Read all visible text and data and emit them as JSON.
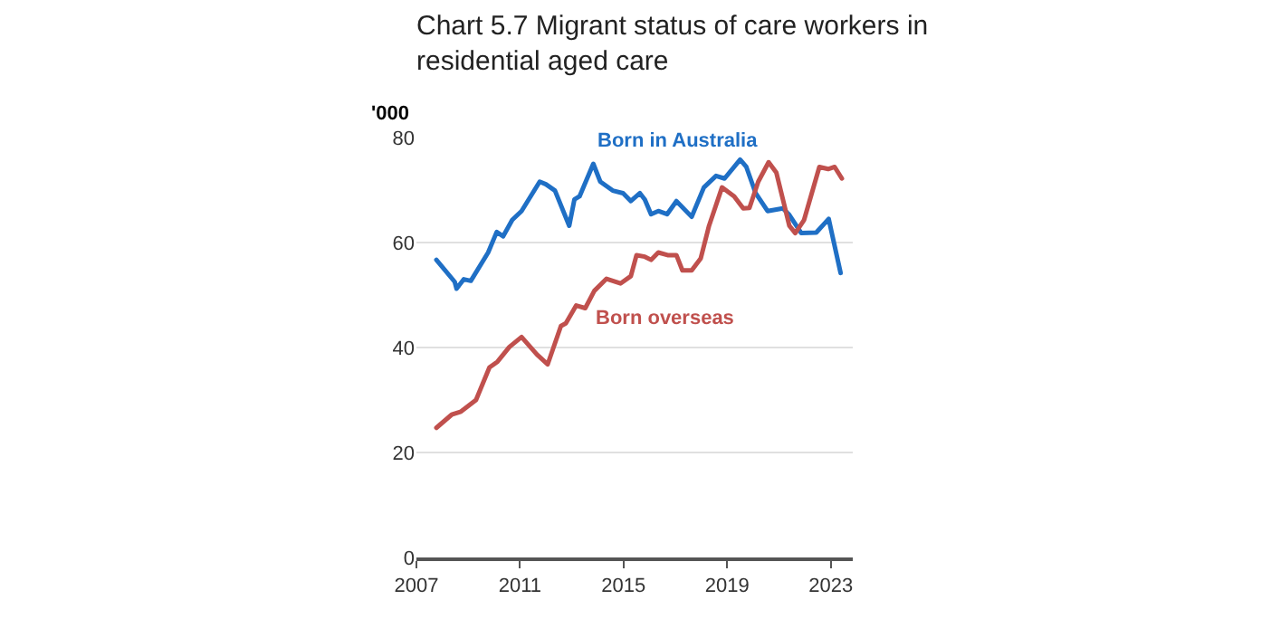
{
  "chart_data": {
    "type": "line",
    "title": "Chart 5.7 Migrant status of care workers in\nresidential aged care",
    "ylabel": "'000",
    "xlim": [
      2007,
      2023.85
    ],
    "xticks": [
      2007,
      2011,
      2015,
      2019,
      2023
    ],
    "ylim": [
      0,
      80
    ],
    "yticks": [
      0,
      20,
      40,
      60,
      80
    ],
    "grid": "y",
    "legend": false,
    "series": [
      {
        "name": "Born in Australia",
        "color": "#1f6fc5",
        "x": [
          2007.77,
          2008.48,
          2008.55,
          2008.83,
          2009.1,
          2009.77,
          2010.1,
          2010.35,
          2010.7,
          2011.06,
          2011.76,
          2012.0,
          2012.35,
          2012.9,
          2013.1,
          2013.3,
          2013.83,
          2014.1,
          2014.58,
          2014.98,
          2015.28,
          2015.63,
          2015.82,
          2016.06,
          2016.34,
          2016.68,
          2017.04,
          2017.63,
          2018.1,
          2018.57,
          2018.9,
          2019.5,
          2019.74,
          2020.1,
          2020.56,
          2021.15,
          2021.38,
          2021.86,
          2022.44,
          2022.92,
          2023.38
        ],
        "values": [
          56.7,
          52.5,
          51.2,
          53,
          52.7,
          58.1,
          62,
          61.2,
          64.3,
          66,
          71.6,
          71.1,
          69.9,
          63.2,
          68.2,
          68.8,
          75,
          71.6,
          69.9,
          69.4,
          67.9,
          69.4,
          68.2,
          65.4,
          66,
          65.4,
          67.9,
          64.9,
          70.5,
          72.7,
          72.2,
          75.8,
          74.4,
          69.4,
          66,
          66.5,
          65.4,
          61.8,
          61.9,
          64.5,
          54.2
        ]
      },
      {
        "name": "Born overseas",
        "color": "#c0504d",
        "x": [
          2007.77,
          2008.36,
          2008.72,
          2009.3,
          2009.82,
          2010.13,
          2010.59,
          2011.06,
          2011.65,
          2012.07,
          2012.58,
          2012.77,
          2013.17,
          2013.52,
          2013.87,
          2014.34,
          2014.88,
          2015.28,
          2015.5,
          2015.82,
          2016.06,
          2016.34,
          2016.7,
          2017.04,
          2017.27,
          2017.63,
          2017.98,
          2018.3,
          2018.8,
          2019.27,
          2019.62,
          2019.86,
          2020.2,
          2020.6,
          2020.9,
          2021.4,
          2021.63,
          2021.97,
          2022.56,
          2022.9,
          2023.15,
          2023.43
        ],
        "values": [
          24.7,
          27.2,
          27.8,
          30,
          36.2,
          37.3,
          40.1,
          42,
          38.7,
          36.8,
          44.1,
          44.6,
          48,
          47.5,
          50.8,
          53.1,
          52.2,
          53.6,
          57.6,
          57.3,
          56.7,
          58.1,
          57.6,
          57.6,
          54.7,
          54.7,
          57,
          63.2,
          70.5,
          68.8,
          66.5,
          66.6,
          71.6,
          75.3,
          73.3,
          63.2,
          61.8,
          64.3,
          74.4,
          74,
          74.4,
          72.2
        ]
      }
    ]
  }
}
